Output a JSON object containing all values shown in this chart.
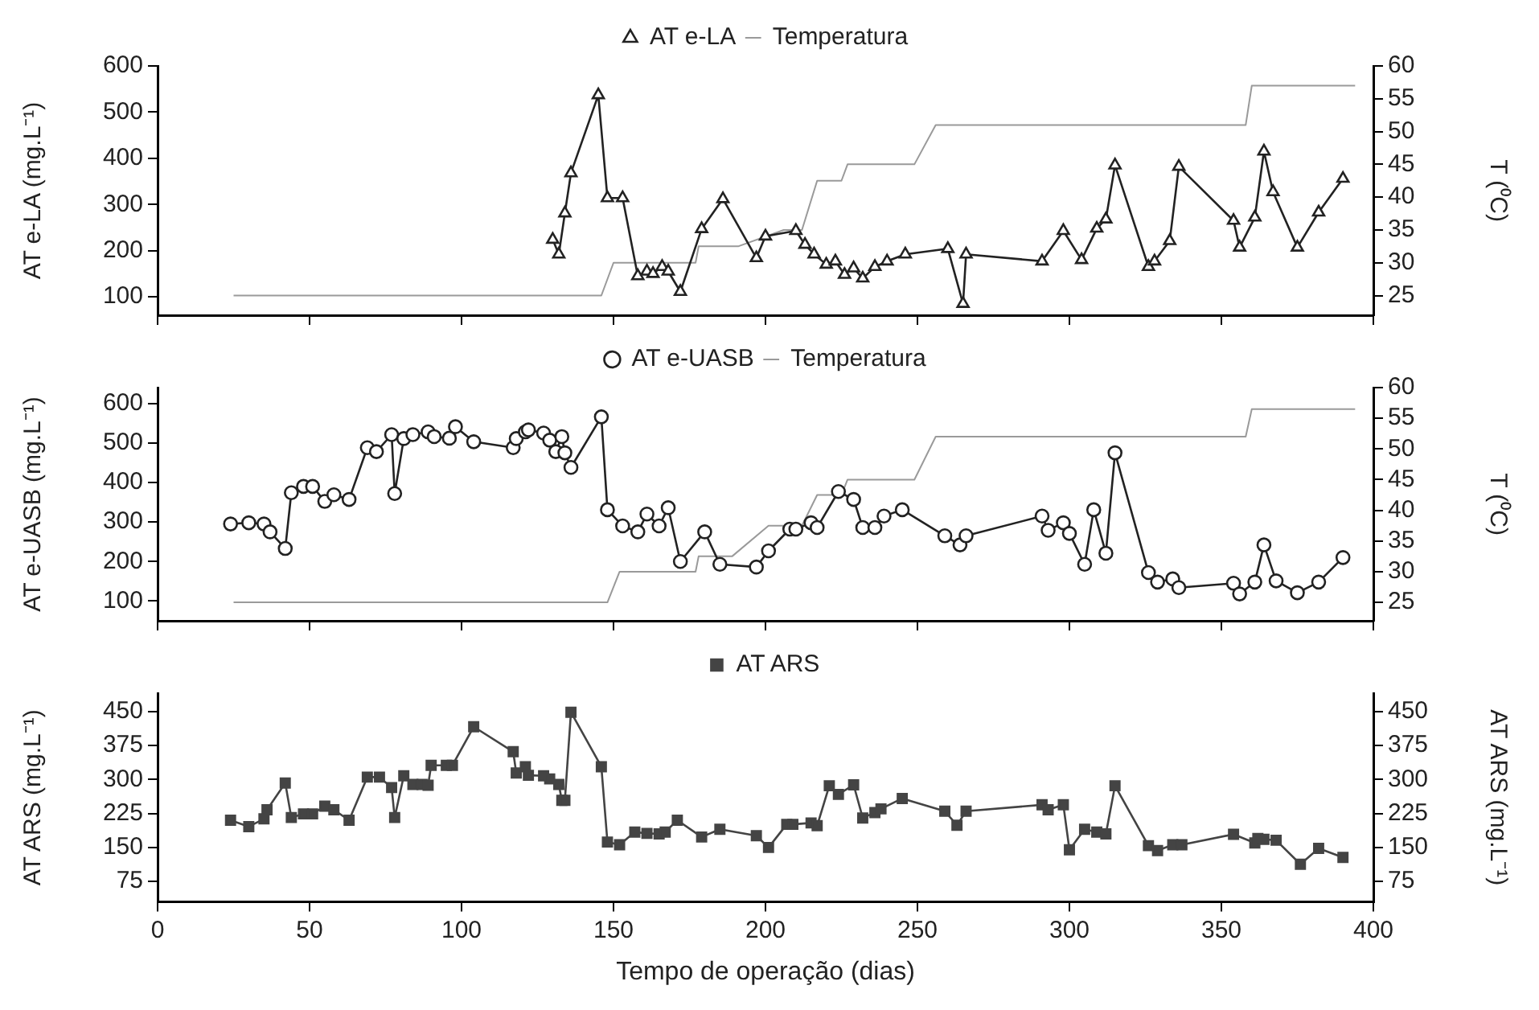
{
  "chart_data": [
    {
      "type": "line",
      "ylabel": "AT e-LA (mg.L⁻¹)",
      "y2label": "T (⁰C)",
      "xlim": [
        0,
        400
      ],
      "xticks": [
        0,
        50,
        100,
        150,
        200,
        250,
        300,
        350,
        400
      ],
      "ylim": [
        60,
        600
      ],
      "yticks": [
        100,
        200,
        300,
        400,
        500,
        600
      ],
      "y2lim": [
        22,
        60
      ],
      "y2ticks": [
        25,
        30,
        35,
        40,
        45,
        50,
        55,
        60
      ],
      "tick_labels": "y",
      "legend": "top",
      "grid": false,
      "series": [
        {
          "name": "AT e-LA",
          "color": "#222222",
          "marker": "triangle",
          "x": [
            130,
            132,
            134,
            136,
            145,
            148,
            153,
            158,
            161,
            163,
            166,
            168,
            172,
            179,
            186,
            197,
            200,
            210,
            213,
            216,
            220,
            223,
            226,
            229,
            232,
            236,
            240,
            246,
            260,
            265,
            266,
            291,
            298,
            304,
            309,
            312,
            315,
            326,
            328,
            333,
            336,
            354,
            356,
            361,
            364,
            367,
            375,
            382,
            390
          ],
          "values": [
            224,
            192,
            281,
            368,
            537,
            314,
            314,
            145,
            155,
            150,
            165,
            155,
            111,
            247,
            312,
            184,
            231,
            243,
            213,
            192,
            170,
            177,
            148,
            162,
            140,
            165,
            177,
            192,
            204,
            85,
            192,
            177,
            243,
            180,
            248,
            268,
            385,
            165,
            177,
            221,
            382,
            265,
            207,
            272,
            415,
            327,
            207,
            283,
            356
          ]
        },
        {
          "name": "Temperatura",
          "color": "#9a9a9a",
          "marker": "none",
          "axis": "y2",
          "x": [
            25,
            146,
            150,
            177,
            178,
            191,
            206,
            212,
            217,
            225,
            227,
            249,
            256,
            358,
            360,
            394
          ],
          "values": [
            25,
            25,
            30,
            30,
            32.5,
            32.5,
            35,
            35,
            42.5,
            42.5,
            45,
            45,
            51,
            51,
            57,
            57
          ]
        }
      ]
    },
    {
      "type": "line",
      "ylabel": "AT e-UASB (mg.L⁻¹)",
      "y2label": "T (⁰C)",
      "xlim": [
        0,
        400
      ],
      "xticks": [
        0,
        50,
        100,
        150,
        200,
        250,
        300,
        350,
        400
      ],
      "ylim": [
        50,
        640
      ],
      "yticks": [
        100,
        200,
        300,
        400,
        500,
        600
      ],
      "y2lim": [
        22,
        60
      ],
      "y2ticks": [
        25,
        30,
        35,
        40,
        45,
        50,
        55,
        60
      ],
      "tick_labels": "y",
      "legend": "top",
      "grid": false,
      "series": [
        {
          "name": "AT e-UASB",
          "color": "#222222",
          "marker": "circle",
          "x": [
            24,
            30,
            35,
            37,
            42,
            44,
            48,
            51,
            55,
            58,
            63,
            69,
            72,
            77,
            78,
            81,
            84,
            89,
            91,
            96,
            98,
            104,
            117,
            118,
            121,
            122,
            127,
            129,
            131,
            133,
            134,
            136,
            146,
            148,
            153,
            158,
            161,
            165,
            168,
            172,
            180,
            185,
            197,
            201,
            208,
            210,
            215,
            217,
            224,
            229,
            232,
            236,
            239,
            245,
            259,
            264,
            266,
            291,
            293,
            298,
            300,
            305,
            308,
            312,
            315,
            326,
            329,
            334,
            336,
            354,
            356,
            361,
            364,
            368,
            375,
            382,
            390
          ],
          "values": [
            295,
            298,
            295,
            275,
            233,
            374,
            390,
            390,
            352,
            369,
            357,
            488,
            478,
            521,
            372,
            511,
            521,
            528,
            516,
            512,
            541,
            503,
            488,
            511,
            528,
            533,
            525,
            507,
            478,
            516,
            475,
            438,
            566,
            331,
            290,
            275,
            320,
            290,
            336,
            200,
            275,
            193,
            186,
            227,
            282,
            282,
            298,
            286,
            377,
            357,
            286,
            286,
            315,
            331,
            265,
            242,
            265,
            315,
            279,
            298,
            271,
            193,
            331,
            221,
            475,
            172,
            148,
            156,
            134,
            145,
            118,
            148,
            242,
            151,
            121,
            148,
            210
          ]
        },
        {
          "name": "Temperatura",
          "color": "#9a9a9a",
          "marker": "none",
          "axis": "y2",
          "x": [
            25,
            148,
            152,
            177,
            178,
            189,
            201,
            212,
            217,
            225,
            227,
            249,
            256,
            358,
            360,
            394
          ],
          "values": [
            25,
            25,
            30,
            30,
            32.5,
            32.5,
            37.5,
            37.5,
            42.5,
            42.5,
            45,
            45,
            52,
            52,
            56.5,
            56.5
          ]
        }
      ]
    },
    {
      "type": "line",
      "ylabel": "AT ARS (mg.L⁻¹)",
      "y2label": "AT ARS (mg.L⁻¹)",
      "xlabel": "Tempo de operação (dias)",
      "xlim": [
        0,
        400
      ],
      "xticks": [
        0,
        50,
        100,
        150,
        200,
        250,
        300,
        350,
        400
      ],
      "ylim": [
        30,
        490
      ],
      "yticks": [
        75,
        150,
        225,
        300,
        375,
        450
      ],
      "y2lim": [
        30,
        490
      ],
      "y2ticks": [
        75,
        150,
        225,
        300,
        375,
        450
      ],
      "legend": "top",
      "grid": false,
      "series": [
        {
          "name": "AT ARS",
          "color": "#444444",
          "marker": "square",
          "x": [
            24,
            30,
            35,
            36,
            42,
            44,
            48,
            51,
            55,
            58,
            63,
            69,
            73,
            77,
            78,
            81,
            84,
            87,
            89,
            90,
            95,
            97,
            104,
            117,
            118,
            121,
            122,
            127,
            129,
            132,
            133,
            134,
            136,
            146,
            148,
            152,
            157,
            161,
            165,
            167,
            171,
            179,
            185,
            197,
            201,
            207,
            209,
            215,
            217,
            221,
            224,
            229,
            232,
            236,
            238,
            245,
            259,
            263,
            266,
            291,
            293,
            298,
            300,
            305,
            309,
            312,
            315,
            326,
            329,
            334,
            337,
            354,
            361,
            362,
            364,
            368,
            376,
            382,
            390
          ],
          "values": [
            210,
            196,
            213,
            233,
            292,
            216,
            224,
            224,
            241,
            233,
            210,
            305,
            305,
            282,
            216,
            308,
            289,
            289,
            287,
            331,
            331,
            331,
            416,
            361,
            314,
            328,
            309,
            308,
            301,
            289,
            254,
            254,
            448,
            328,
            162,
            156,
            184,
            181,
            180,
            184,
            210,
            173,
            190,
            176,
            150,
            201,
            201,
            204,
            198,
            286,
            267,
            288,
            215,
            227,
            235,
            258,
            230,
            199,
            230,
            244,
            233,
            244,
            145,
            190,
            184,
            180,
            286,
            154,
            143,
            156,
            156,
            179,
            160,
            170,
            168,
            166,
            113,
            148,
            128
          ]
        }
      ]
    }
  ]
}
